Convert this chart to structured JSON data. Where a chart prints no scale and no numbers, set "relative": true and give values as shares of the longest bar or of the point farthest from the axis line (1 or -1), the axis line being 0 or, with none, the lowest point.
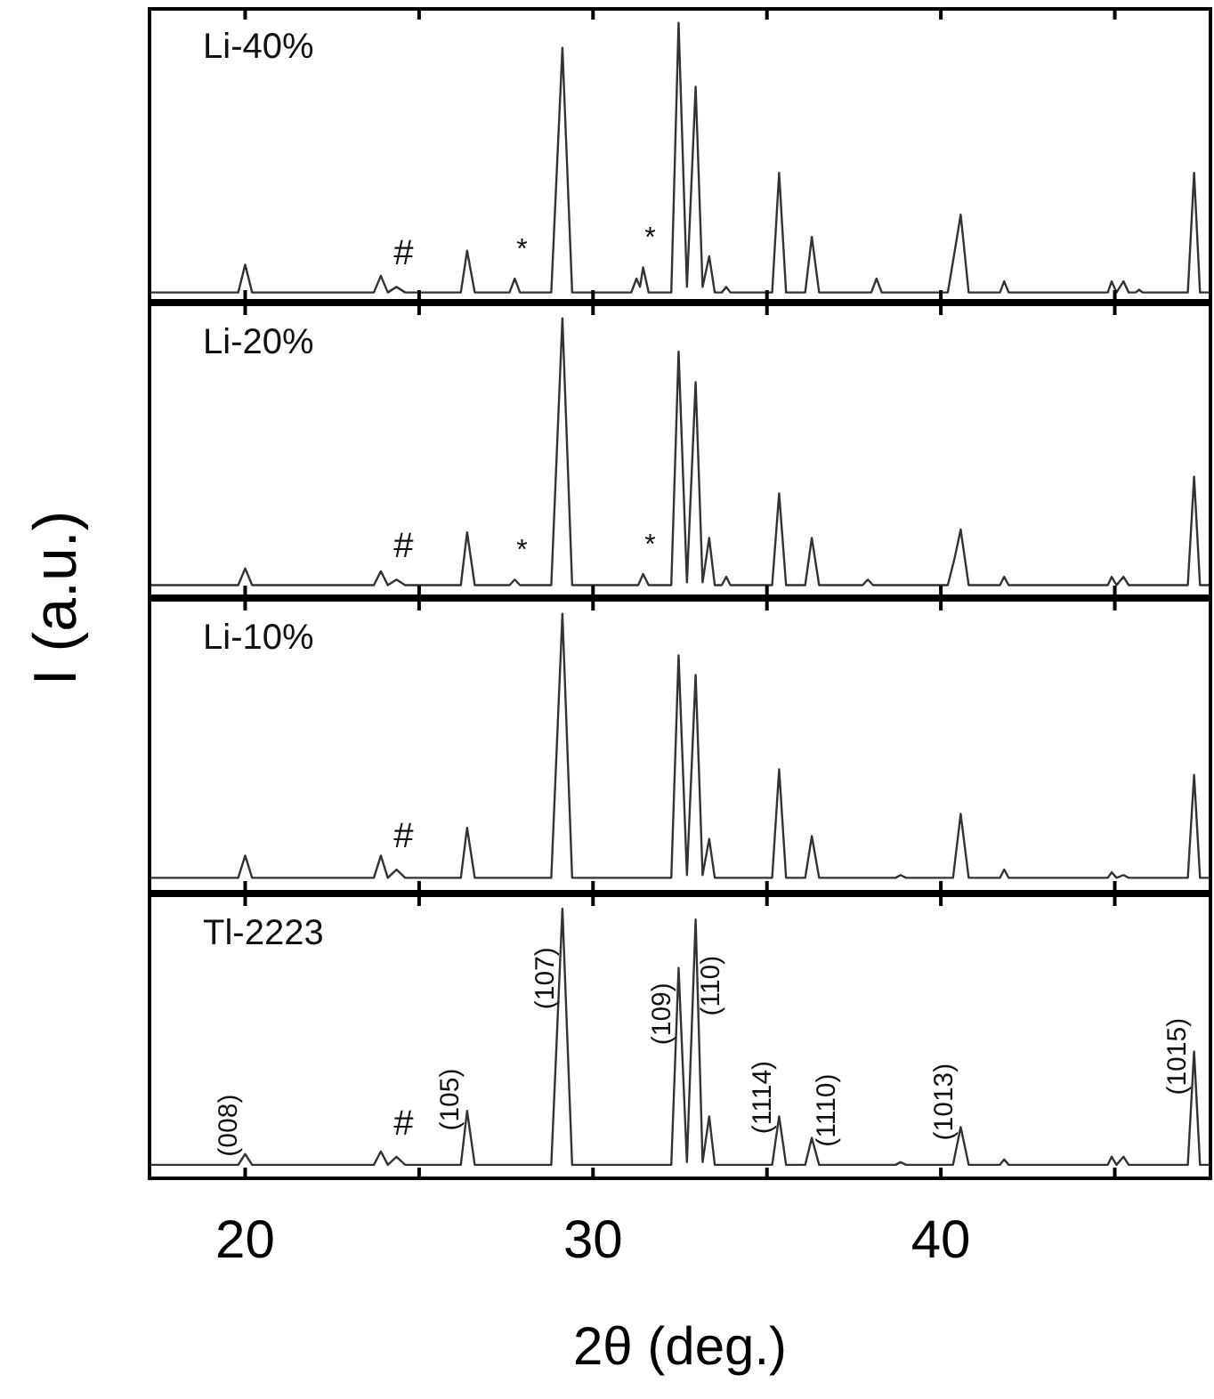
{
  "chart_data": [
    {
      "type": "line",
      "relative": true,
      "xlim": [
        17.25,
        47.75
      ],
      "xticks": [
        20,
        {
          "value": 25,
          "label": null
        },
        30,
        {
          "value": 35,
          "label": null
        },
        40,
        {
          "value": 45,
          "label": null
        }
      ],
      "tick_labels": false,
      "marker": "none",
      "annotations": [
        "Li-40%",
        {
          "text": "#",
          "x": 24.35,
          "y": 0.05
        },
        {
          "text": "*",
          "x": 27.75,
          "y": 0.08
        },
        {
          "text": "*",
          "x": 31.44,
          "y": 0.12
        }
      ],
      "series": [
        {
          "color": "#333333",
          "x": [
            17.3,
            19.8,
            20.0,
            20.2,
            23.7,
            23.9,
            24.1,
            24.35,
            24.6,
            26.2,
            26.38,
            26.6,
            27.6,
            27.75,
            27.9,
            28.8,
            29.12,
            29.4,
            31.1,
            31.25,
            31.35,
            31.44,
            31.6,
            32.25,
            32.46,
            32.7,
            32.95,
            33.15,
            33.34,
            33.5,
            33.7,
            33.83,
            33.95,
            35.15,
            35.35,
            35.55,
            36.1,
            36.29,
            36.5,
            38.0,
            38.15,
            38.3,
            40.2,
            40.4,
            40.57,
            40.8,
            41.7,
            41.82,
            41.95,
            44.8,
            44.91,
            45.05,
            45.25,
            45.4,
            45.6,
            45.7,
            45.8,
            47.1,
            47.28,
            47.45,
            47.7
          ],
          "values": [
            0.03,
            0.03,
            0.13,
            0.03,
            0.03,
            0.09,
            0.03,
            0.05,
            0.03,
            0.03,
            0.18,
            0.03,
            0.03,
            0.08,
            0.03,
            0.03,
            0.91,
            0.03,
            0.03,
            0.08,
            0.05,
            0.12,
            0.03,
            0.03,
            1.0,
            0.05,
            0.77,
            0.05,
            0.16,
            0.03,
            0.03,
            0.05,
            0.03,
            0.03,
            0.46,
            0.03,
            0.03,
            0.23,
            0.03,
            0.03,
            0.08,
            0.03,
            0.03,
            0.18,
            0.31,
            0.03,
            0.03,
            0.07,
            0.03,
            0.03,
            0.07,
            0.03,
            0.07,
            0.03,
            0.03,
            0.04,
            0.03,
            0.03,
            0.46,
            0.03,
            0.03
          ]
        }
      ]
    },
    {
      "type": "line",
      "relative": true,
      "xlim": [
        17.25,
        47.75
      ],
      "xticks": [
        20,
        {
          "value": 25,
          "label": null
        },
        30,
        {
          "value": 35,
          "label": null
        },
        40,
        {
          "value": 45,
          "label": null
        }
      ],
      "tick_labels": false,
      "marker": "none",
      "ylabel": "I (a.u.)",
      "annotations": [
        "Li-20%",
        {
          "text": "#",
          "x": 24.35,
          "y": 0.06
        },
        {
          "text": "*",
          "x": 27.75,
          "y": 0.06
        },
        {
          "text": "*",
          "x": 31.44,
          "y": 0.08
        }
      ],
      "series": [
        {
          "color": "#333333",
          "x": [
            17.3,
            19.8,
            20.0,
            20.2,
            23.7,
            23.9,
            24.1,
            24.35,
            24.6,
            26.2,
            26.38,
            26.6,
            27.6,
            27.75,
            27.9,
            28.8,
            29.12,
            29.4,
            31.3,
            31.44,
            31.6,
            32.25,
            32.46,
            32.7,
            32.95,
            33.15,
            33.34,
            33.5,
            33.7,
            33.83,
            33.95,
            35.15,
            35.35,
            35.55,
            36.1,
            36.29,
            36.5,
            37.75,
            37.9,
            38.05,
            40.2,
            40.4,
            40.57,
            40.8,
            41.7,
            41.82,
            41.95,
            44.8,
            44.91,
            45.05,
            45.25,
            45.4,
            47.1,
            47.28,
            47.45,
            47.7
          ],
          "values": [
            0.04,
            0.04,
            0.1,
            0.04,
            0.04,
            0.09,
            0.04,
            0.06,
            0.04,
            0.04,
            0.23,
            0.04,
            0.04,
            0.06,
            0.04,
            0.04,
            1.0,
            0.04,
            0.04,
            0.08,
            0.04,
            0.04,
            0.88,
            0.05,
            0.77,
            0.05,
            0.21,
            0.04,
            0.04,
            0.07,
            0.04,
            0.04,
            0.37,
            0.04,
            0.04,
            0.21,
            0.04,
            0.04,
            0.06,
            0.04,
            0.04,
            0.14,
            0.24,
            0.04,
            0.04,
            0.07,
            0.04,
            0.04,
            0.07,
            0.04,
            0.07,
            0.04,
            0.04,
            0.43,
            0.04,
            0.04
          ]
        }
      ]
    },
    {
      "type": "line",
      "relative": true,
      "xlim": [
        17.25,
        47.75
      ],
      "xticks": [
        20,
        {
          "value": 25,
          "label": null
        },
        30,
        {
          "value": 35,
          "label": null
        },
        40,
        {
          "value": 45,
          "label": null
        }
      ],
      "tick_labels": false,
      "marker": "none",
      "annotations": [
        "Li-10%",
        {
          "text": "#",
          "x": 24.35,
          "y": 0.08
        }
      ],
      "series": [
        {
          "color": "#333333",
          "x": [
            17.3,
            19.8,
            20.0,
            20.2,
            23.7,
            23.9,
            24.1,
            24.35,
            24.6,
            26.2,
            26.38,
            26.6,
            28.8,
            29.12,
            29.4,
            32.25,
            32.46,
            32.7,
            32.95,
            33.15,
            33.34,
            33.5,
            35.15,
            35.35,
            35.55,
            36.1,
            36.29,
            36.5,
            38.7,
            38.84,
            39.0,
            40.35,
            40.57,
            40.8,
            41.7,
            41.82,
            41.95,
            44.8,
            44.91,
            45.05,
            45.25,
            45.4,
            47.1,
            47.28,
            47.45,
            47.7
          ],
          "values": [
            0.05,
            0.05,
            0.13,
            0.05,
            0.05,
            0.13,
            0.05,
            0.08,
            0.05,
            0.05,
            0.23,
            0.05,
            0.05,
            1.0,
            0.05,
            0.05,
            0.85,
            0.06,
            0.78,
            0.06,
            0.19,
            0.05,
            0.05,
            0.44,
            0.05,
            0.05,
            0.2,
            0.05,
            0.05,
            0.06,
            0.05,
            0.05,
            0.28,
            0.05,
            0.05,
            0.08,
            0.05,
            0.05,
            0.07,
            0.05,
            0.06,
            0.05,
            0.05,
            0.42,
            0.05,
            0.05
          ]
        }
      ]
    },
    {
      "type": "line",
      "relative": true,
      "xlim": [
        17.25,
        47.75
      ],
      "xticks": [
        20,
        {
          "value": 25,
          "label": null
        },
        30,
        {
          "value": 35,
          "label": null
        },
        40,
        {
          "value": 45,
          "label": null
        }
      ],
      "tick_labels": "x",
      "marker": "none",
      "xlabel": "2θ (deg.)",
      "annotations": [
        "Tl-2223",
        {
          "text": "#",
          "x": 24.35,
          "y": 0.08
        },
        {
          "text": "(008)",
          "x": 20.0,
          "y": 0.09
        },
        {
          "text": "(105)",
          "x": 26.38,
          "y": 0.25
        },
        {
          "text": "(107)",
          "x": 29.12,
          "y": 1.0
        },
        {
          "text": "(109)",
          "x": 32.46,
          "y": 0.78
        },
        {
          "text": "(110)",
          "x": 32.95,
          "y": 0.96
        },
        {
          "text": "(1114)",
          "x": 35.35,
          "y": 0.23
        },
        {
          "text": "(1110)",
          "x": 36.29,
          "y": 0.15
        },
        {
          "text": "(1013)",
          "x": 40.57,
          "y": 0.19
        },
        {
          "text": "(1015)",
          "x": 47.28,
          "y": 0.47
        }
      ],
      "series": [
        {
          "color": "#333333",
          "x": [
            17.3,
            19.8,
            20.0,
            20.2,
            23.7,
            23.9,
            24.1,
            24.35,
            24.6,
            26.2,
            26.38,
            26.6,
            28.8,
            29.12,
            29.4,
            32.25,
            32.46,
            32.7,
            32.95,
            33.15,
            33.34,
            33.5,
            35.15,
            35.35,
            35.55,
            36.1,
            36.29,
            36.5,
            38.7,
            38.84,
            39.0,
            40.35,
            40.57,
            40.8,
            41.7,
            41.82,
            41.95,
            44.8,
            44.91,
            45.05,
            45.25,
            45.4,
            47.1,
            47.28,
            47.45,
            47.7
          ],
          "values": [
            0.05,
            0.05,
            0.09,
            0.05,
            0.05,
            0.1,
            0.05,
            0.08,
            0.05,
            0.05,
            0.25,
            0.05,
            0.05,
            1.0,
            0.05,
            0.05,
            0.78,
            0.06,
            0.96,
            0.06,
            0.23,
            0.05,
            0.05,
            0.23,
            0.05,
            0.05,
            0.15,
            0.05,
            0.05,
            0.06,
            0.05,
            0.05,
            0.19,
            0.05,
            0.05,
            0.07,
            0.05,
            0.05,
            0.08,
            0.05,
            0.08,
            0.05,
            0.05,
            0.47,
            0.05,
            0.05
          ]
        }
      ]
    }
  ]
}
